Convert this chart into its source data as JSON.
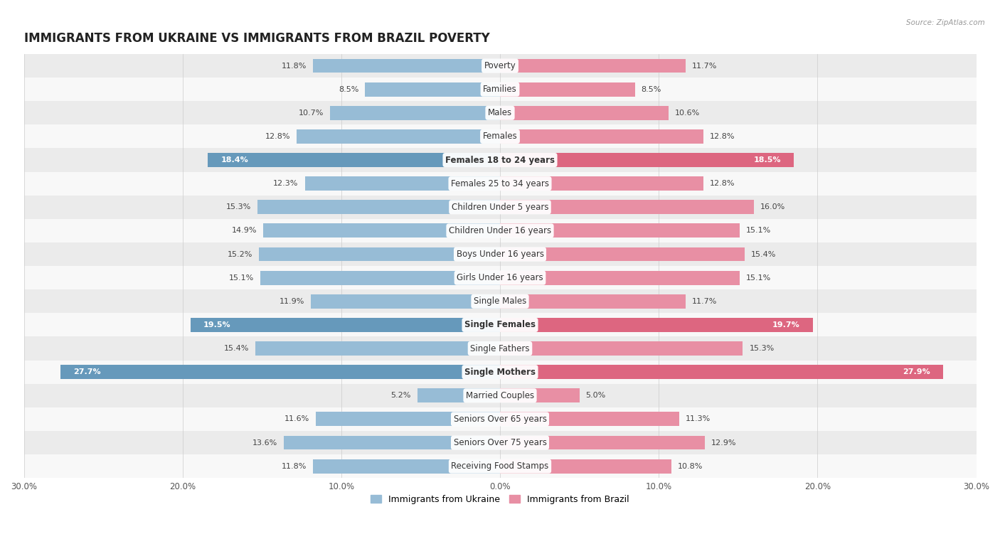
{
  "title": "IMMIGRANTS FROM UKRAINE VS IMMIGRANTS FROM BRAZIL POVERTY",
  "source": "Source: ZipAtlas.com",
  "categories": [
    "Poverty",
    "Families",
    "Males",
    "Females",
    "Females 18 to 24 years",
    "Females 25 to 34 years",
    "Children Under 5 years",
    "Children Under 16 years",
    "Boys Under 16 years",
    "Girls Under 16 years",
    "Single Males",
    "Single Females",
    "Single Fathers",
    "Single Mothers",
    "Married Couples",
    "Seniors Over 65 years",
    "Seniors Over 75 years",
    "Receiving Food Stamps"
  ],
  "ukraine_values": [
    11.8,
    8.5,
    10.7,
    12.8,
    18.4,
    12.3,
    15.3,
    14.9,
    15.2,
    15.1,
    11.9,
    19.5,
    15.4,
    27.7,
    5.2,
    11.6,
    13.6,
    11.8
  ],
  "brazil_values": [
    11.7,
    8.5,
    10.6,
    12.8,
    18.5,
    12.8,
    16.0,
    15.1,
    15.4,
    15.1,
    11.7,
    19.7,
    15.3,
    27.9,
    5.0,
    11.3,
    12.9,
    10.8
  ],
  "ukraine_color": "#97bcd6",
  "brazil_color": "#e88fa4",
  "ukraine_highlight_color": "#6699bb",
  "brazil_highlight_color": "#dd6680",
  "highlight_rows": [
    4,
    11,
    13
  ],
  "bar_height": 0.6,
  "xlim": 30,
  "background_color": "#ffffff",
  "row_even_color": "#ebebeb",
  "row_odd_color": "#f8f8f8",
  "legend_ukraine": "Immigrants from Ukraine",
  "legend_brazil": "Immigrants from Brazil",
  "title_fontsize": 12,
  "label_fontsize": 8.5,
  "value_fontsize": 8,
  "axis_fontsize": 8.5,
  "axis_ticks": [
    30,
    20,
    10,
    0,
    10,
    20,
    30
  ]
}
